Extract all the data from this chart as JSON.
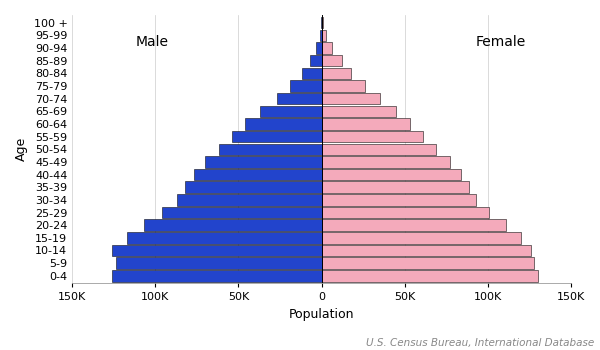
{
  "age_groups": [
    "0-4",
    "5-9",
    "10-14",
    "15-19",
    "20-24",
    "25-29",
    "30-34",
    "35-39",
    "40-44",
    "45-49",
    "50-54",
    "55-59",
    "60-64",
    "65-69",
    "70-74",
    "75-79",
    "80-84",
    "85-89",
    "90-94",
    "95-99",
    "100 +"
  ],
  "male": [
    126000,
    124000,
    126000,
    117000,
    107000,
    96000,
    87000,
    82000,
    77000,
    70000,
    62000,
    54000,
    46000,
    37000,
    27000,
    19000,
    12000,
    7000,
    3500,
    1200,
    300
  ],
  "female": [
    130000,
    128000,
    126000,
    120000,
    111000,
    101000,
    93000,
    89000,
    84000,
    77000,
    69000,
    61000,
    53000,
    45000,
    35000,
    26000,
    18000,
    12000,
    6500,
    2500,
    800
  ],
  "male_color": "#2244CC",
  "female_color": "#F4AABB",
  "edge_color": "#111111",
  "background_color": "#FFFFFF",
  "xlabel": "Population",
  "ylabel": "Age",
  "male_label": "Male",
  "female_label": "Female",
  "xlim": 150000,
  "xtick_vals": [
    -150000,
    -100000,
    -50000,
    0,
    50000,
    100000,
    150000
  ],
  "source_text": "U.S. Census Bureau, International Database",
  "source_fontsize": 7.5,
  "bar_height": 0.9,
  "label_fontsize": 10,
  "tick_fontsize": 8,
  "xlabel_fontsize": 9,
  "ylabel_fontsize": 9
}
